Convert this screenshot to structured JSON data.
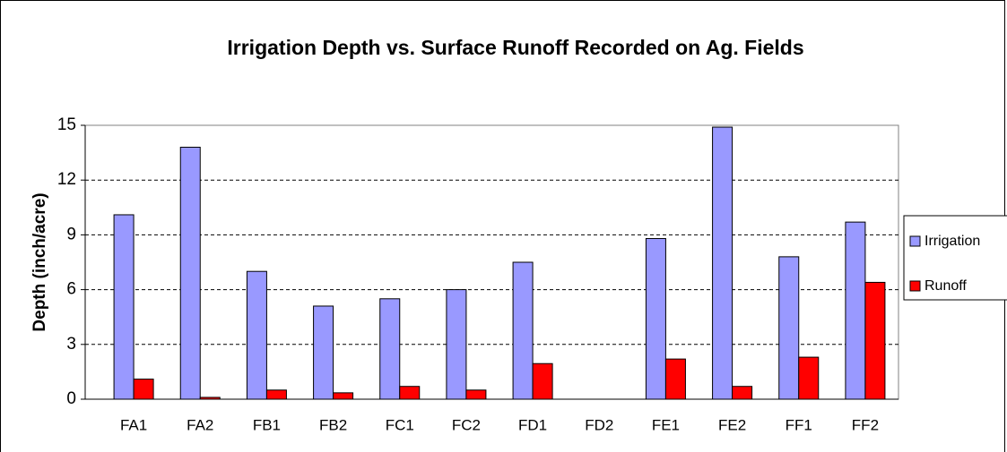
{
  "chart_data": {
    "type": "bar",
    "title": "Irrigation Depth vs. Surface Runoff  Recorded on Ag. Fields",
    "y_label": "Depth (inch/acre)",
    "categories": [
      "FA1",
      "FA2",
      "FB1",
      "FB2",
      "FC1",
      "FC2",
      "FD1",
      "FD2",
      "FE1",
      "FE2",
      "FF1",
      "FF2"
    ],
    "series": [
      {
        "name": "Irrigation",
        "color": "#9999ff",
        "values": [
          10.1,
          13.8,
          7.0,
          5.1,
          5.5,
          6.0,
          7.5,
          null,
          8.8,
          14.9,
          7.8,
          9.7
        ]
      },
      {
        "name": "Runoff",
        "color": "#ff0000",
        "values": [
          1.1,
          0.1,
          0.5,
          0.35,
          0.7,
          0.5,
          1.95,
          null,
          2.2,
          0.7,
          2.3,
          6.4
        ]
      }
    ],
    "ylim": [
      0,
      15
    ],
    "yticks": [
      0,
      3,
      6,
      9,
      12,
      15
    ],
    "grid": true,
    "legend": "right"
  }
}
